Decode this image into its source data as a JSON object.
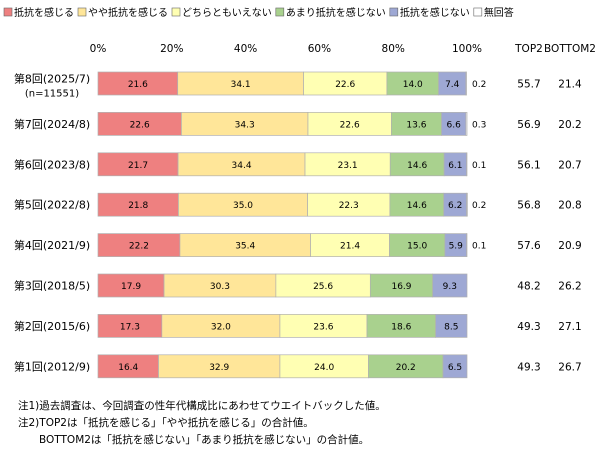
{
  "chart_data": {
    "type": "bar",
    "orientation": "horizontal",
    "stacked": true,
    "xlim": [
      0,
      100
    ],
    "x_ticks": [
      "0%",
      "20%",
      "40%",
      "60%",
      "80%",
      "100%"
    ],
    "categories": [
      {
        "label": "第8回(2025/7)",
        "sublabel": "(n=11551)"
      },
      {
        "label": "第7回(2024/8)",
        "sublabel": ""
      },
      {
        "label": "第6回(2023/8)",
        "sublabel": ""
      },
      {
        "label": "第5回(2022/8)",
        "sublabel": ""
      },
      {
        "label": "第4回(2021/9)",
        "sublabel": ""
      },
      {
        "label": "第3回(2018/5)",
        "sublabel": ""
      },
      {
        "label": "第2回(2015/6)",
        "sublabel": ""
      },
      {
        "label": "第1回(2012/9)",
        "sublabel": ""
      }
    ],
    "series": [
      {
        "name": "抵抗を感じる",
        "color": "#ee8080",
        "values": [
          21.6,
          22.6,
          21.7,
          21.8,
          22.2,
          17.9,
          17.3,
          16.4
        ]
      },
      {
        "name": "やや抵抗を感じる",
        "color": "#ffe699",
        "values": [
          34.1,
          34.3,
          34.4,
          35.0,
          35.4,
          30.3,
          32.0,
          32.9
        ]
      },
      {
        "name": "どちらともいえない",
        "color": "#ffffb3",
        "values": [
          22.6,
          22.6,
          23.1,
          22.3,
          21.4,
          25.6,
          23.6,
          24.0
        ]
      },
      {
        "name": "あまり抵抗を感じない",
        "color": "#a9d18e",
        "values": [
          14.0,
          13.6,
          14.6,
          14.6,
          15.0,
          16.9,
          18.6,
          20.2
        ]
      },
      {
        "name": "抵抗を感じない",
        "color": "#9ea8d4",
        "values": [
          7.4,
          6.6,
          6.1,
          6.2,
          5.9,
          9.3,
          8.5,
          6.5
        ]
      },
      {
        "name": "無回答",
        "color": "#ffffff",
        "values": [
          0.2,
          0.3,
          0.1,
          0.2,
          0.1,
          null,
          null,
          null
        ]
      }
    ],
    "summary_columns": [
      {
        "header": "TOP2",
        "values": [
          "55.7",
          "56.9",
          "56.1",
          "56.8",
          "57.6",
          "48.2",
          "49.3",
          "49.3"
        ]
      },
      {
        "header": "BOTTOM2",
        "values": [
          "21.4",
          "20.2",
          "20.7",
          "20.8",
          "20.9",
          "26.2",
          "27.1",
          "26.7"
        ]
      }
    ],
    "legend_position": "top"
  },
  "notes": [
    "注1)過去調査は、今回調査の性年代構成比にあわせてウエイトバックした値。",
    "注2)TOP2は「抵抗を感じる」「やや抵抗を感じる」の合計値。",
    "　　BOTTOM2は「抵抗を感じない」「あまり抵抗を感じない」の合計値。"
  ]
}
